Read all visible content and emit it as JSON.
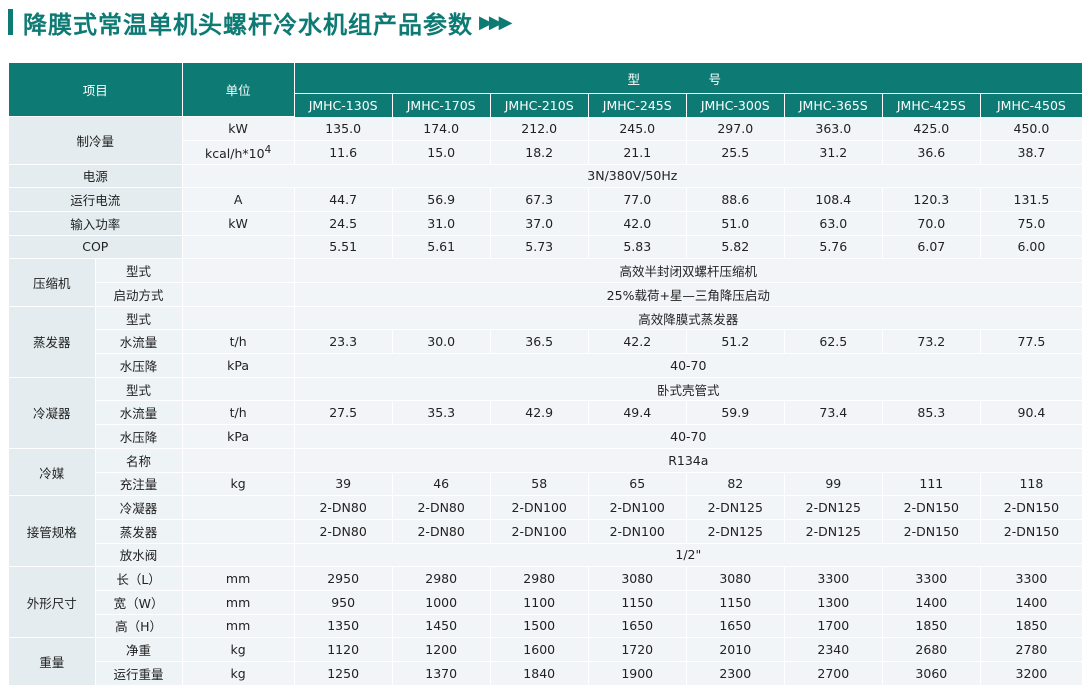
{
  "page_title": "降膜式常温单机头螺杆冷水机组产品参数",
  "title_arrows": "▶▶▶",
  "header": {
    "item": "项目",
    "unit": "单位",
    "model": "型　号",
    "models": [
      "JMHC-130S",
      "JMHC-170S",
      "JMHC-210S",
      "JMHC-245S",
      "JMHC-300S",
      "JMHC-365S",
      "JMHC-425S",
      "JMHC-450S"
    ]
  },
  "rows": {
    "cooling": {
      "label": "制冷量",
      "kw": {
        "unit": "kW",
        "values": [
          "135.0",
          "174.0",
          "212.0",
          "245.0",
          "297.0",
          "363.0",
          "425.0",
          "450.0"
        ]
      },
      "kcal": {
        "unit": "kcal/h*10",
        "unit_sup": "4",
        "values": [
          "11.6",
          "15.0",
          "18.2",
          "21.1",
          "25.5",
          "31.2",
          "36.6",
          "38.7"
        ]
      }
    },
    "power_supply": {
      "label": "电源",
      "value": "3N/380V/50Hz"
    },
    "current": {
      "label": "运行电流",
      "unit": "A",
      "values": [
        "44.7",
        "56.9",
        "67.3",
        "77.0",
        "88.6",
        "108.4",
        "120.3",
        "131.5"
      ]
    },
    "input_power": {
      "label": "输入功率",
      "unit": "kW",
      "values": [
        "24.5",
        "31.0",
        "37.0",
        "42.0",
        "51.0",
        "63.0",
        "70.0",
        "75.0"
      ]
    },
    "cop": {
      "label": "COP",
      "values": [
        "5.51",
        "5.61",
        "5.73",
        "5.83",
        "5.82",
        "5.76",
        "6.07",
        "6.00"
      ]
    },
    "compressor": {
      "label": "压缩机",
      "type": {
        "label": "型式",
        "value": "高效半封闭双螺杆压缩机"
      },
      "start": {
        "label": "启动方式",
        "value": "25%载荷+星—三角降压启动"
      }
    },
    "evaporator": {
      "label": "蒸发器",
      "type": {
        "label": "型式",
        "value": "高效降膜式蒸发器"
      },
      "flow": {
        "label": "水流量",
        "unit": "t/h",
        "values": [
          "23.3",
          "30.0",
          "36.5",
          "42.2",
          "51.2",
          "62.5",
          "73.2",
          "77.5"
        ]
      },
      "pressure": {
        "label": "水压降",
        "unit": "kPa",
        "value": "40-70"
      }
    },
    "condenser": {
      "label": "冷凝器",
      "type": {
        "label": "型式",
        "value": "卧式壳管式"
      },
      "flow": {
        "label": "水流量",
        "unit": "t/h",
        "values": [
          "27.5",
          "35.3",
          "42.9",
          "49.4",
          "59.9",
          "73.4",
          "85.3",
          "90.4"
        ]
      },
      "pressure": {
        "label": "水压降",
        "unit": "kPa",
        "value": "40-70"
      }
    },
    "refrigerant": {
      "label": "冷媒",
      "name": {
        "label": "名称",
        "value": "R134a"
      },
      "charge": {
        "label": "充注量",
        "unit": "kg",
        "values": [
          "39",
          "46",
          "58",
          "65",
          "82",
          "99",
          "111",
          "118"
        ]
      }
    },
    "piping": {
      "label": "接管规格",
      "condenser": {
        "label": "冷凝器",
        "values": [
          "2-DN80",
          "2-DN80",
          "2-DN100",
          "2-DN100",
          "2-DN125",
          "2-DN125",
          "2-DN150",
          "2-DN150"
        ]
      },
      "evaporator": {
        "label": "蒸发器",
        "values": [
          "2-DN80",
          "2-DN80",
          "2-DN100",
          "2-DN100",
          "2-DN125",
          "2-DN125",
          "2-DN150",
          "2-DN150"
        ]
      },
      "drain": {
        "label": "放水阀",
        "value": "1/2\""
      }
    },
    "dimensions": {
      "label": "外形尺寸",
      "length": {
        "label": "长（L）",
        "unit": "mm",
        "values": [
          "2950",
          "2980",
          "2980",
          "3080",
          "3080",
          "3300",
          "3300",
          "3300"
        ]
      },
      "width": {
        "label": "宽（W）",
        "unit": "mm",
        "values": [
          "950",
          "1000",
          "1100",
          "1150",
          "1150",
          "1300",
          "1400",
          "1400"
        ]
      },
      "height": {
        "label": "高（H）",
        "unit": "mm",
        "values": [
          "1350",
          "1450",
          "1500",
          "1650",
          "1650",
          "1700",
          "1850",
          "1850"
        ]
      }
    },
    "weight": {
      "label": "重量",
      "net": {
        "label": "净重",
        "unit": "kg",
        "values": [
          "1120",
          "1200",
          "1600",
          "1720",
          "2010",
          "2340",
          "2680",
          "2780"
        ]
      },
      "operating": {
        "label": "运行重量",
        "unit": "kg",
        "values": [
          "1250",
          "1370",
          "1840",
          "1900",
          "2300",
          "2700",
          "3060",
          "3200"
        ]
      }
    }
  }
}
